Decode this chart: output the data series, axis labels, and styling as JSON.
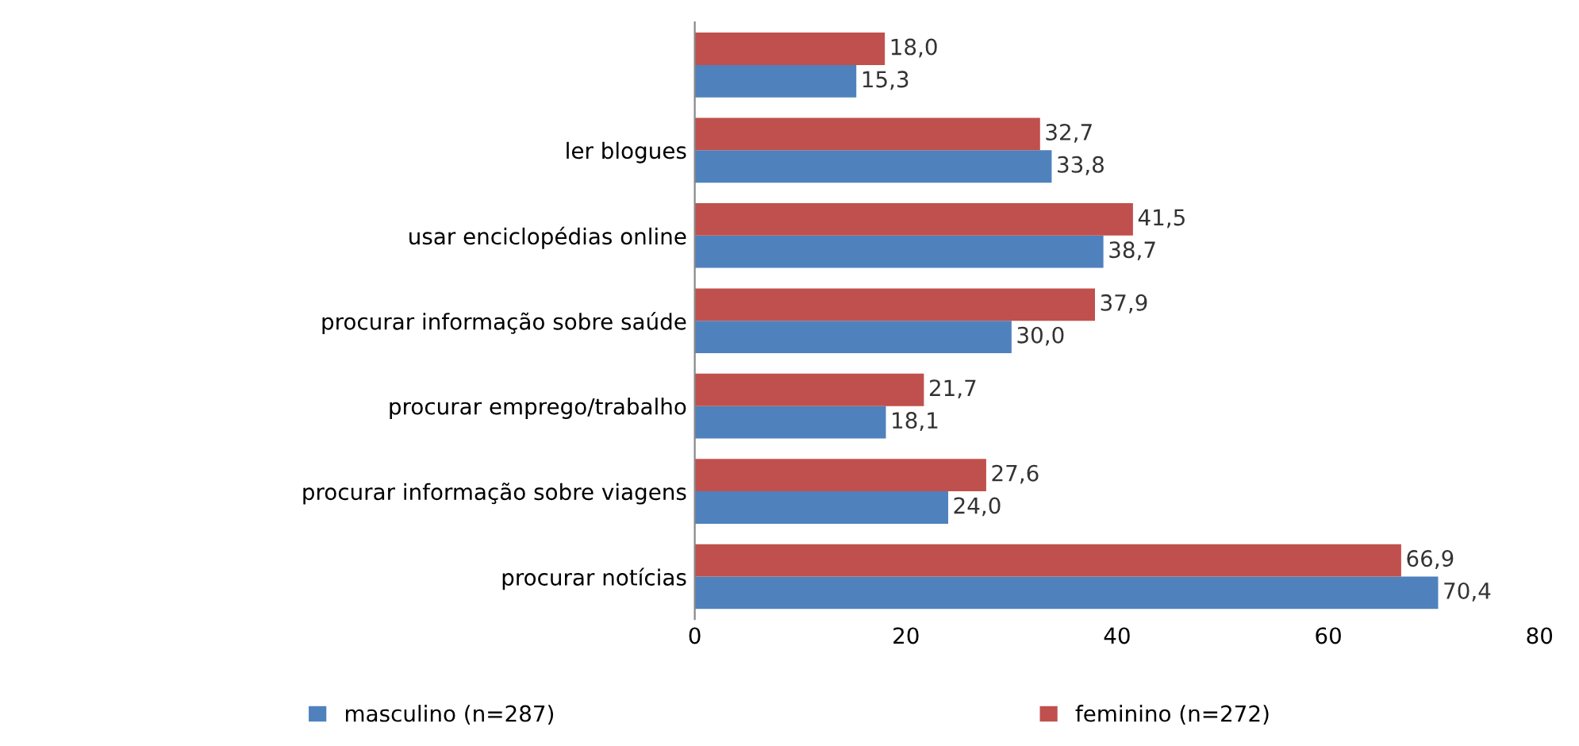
{
  "chart_data": {
    "type": "bar",
    "orientation": "horizontal",
    "categories": [
      null,
      "ler blogues",
      "usar enciclopédias online",
      "procurar informação sobre saúde",
      "procurar emprego/trabalho",
      "procurar informação sobre viagens",
      "procurar notícias"
    ],
    "series": [
      {
        "name": "masculino (n=287)",
        "color": "#4f81bd",
        "values": [
          15.3,
          33.8,
          38.7,
          30.0,
          18.1,
          24.0,
          70.4
        ],
        "value_labels": [
          "15,3",
          "33,8",
          "38,7",
          "30,0",
          "18,1",
          "24,0",
          "70,4"
        ]
      },
      {
        "name": "feminino (n=272)",
        "color": "#c0504d",
        "values": [
          18.0,
          32.7,
          41.5,
          37.9,
          21.7,
          27.6,
          66.9
        ],
        "value_labels": [
          "18,0",
          "32,7",
          "41,5",
          "37,9",
          "21,7",
          "27,6",
          "66,9"
        ]
      }
    ],
    "xlim": [
      0,
      80
    ],
    "xticks": [
      0,
      20,
      40,
      60,
      80
    ],
    "grid": false,
    "legend": "bottom"
  }
}
